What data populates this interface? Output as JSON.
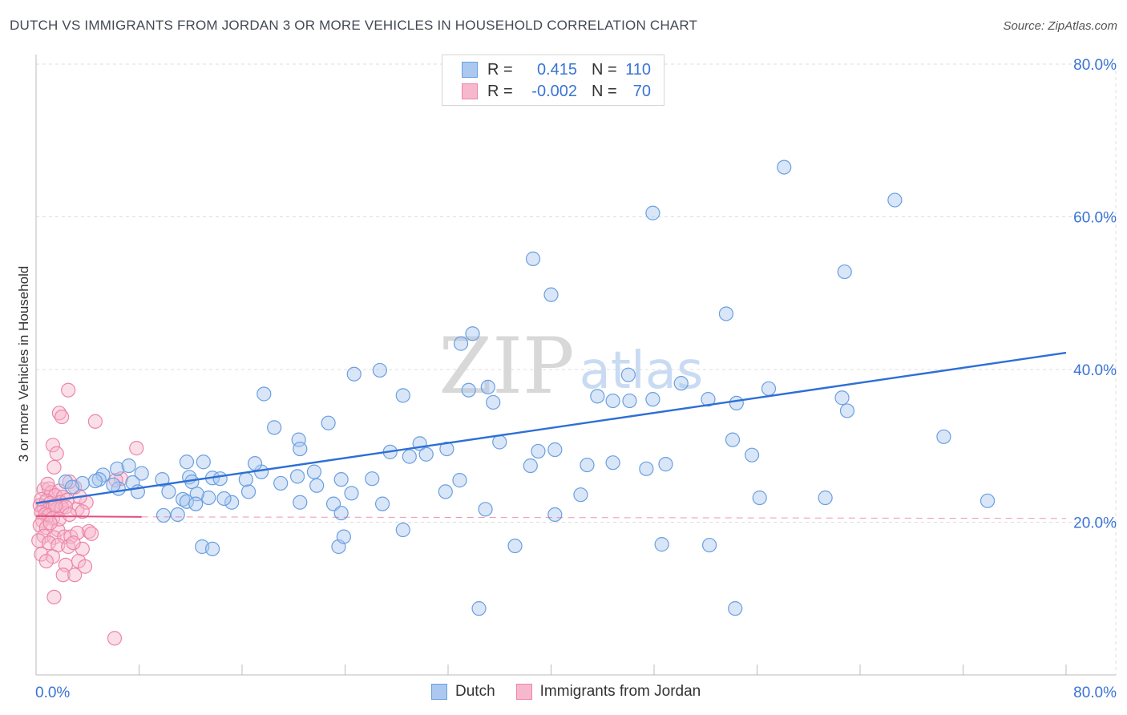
{
  "title": "DUTCH VS IMMIGRANTS FROM JORDAN 3 OR MORE VEHICLES IN HOUSEHOLD CORRELATION CHART",
  "source": "Source: ZipAtlas.com",
  "watermark": {
    "zip": "ZIP",
    "atlas": "atlas"
  },
  "legend": {
    "dutch": {
      "r_label": "R =",
      "r_value": "0.415",
      "n_label": "N =",
      "n_value": "110"
    },
    "jordan": {
      "r_label": "R =",
      "r_value": "-0.002",
      "n_label": "N =",
      "n_value": "70"
    }
  },
  "bottom_legend": {
    "dutch": "Dutch",
    "jordan": "Immigrants from Jordan"
  },
  "colors": {
    "dutch_fill": "#aac8f0",
    "dutch_stroke": "#6a9fe0",
    "dutch_line": "#2d6fd6",
    "jordan_fill": "#f7b8cd",
    "jordan_stroke": "#ec86a8",
    "jordan_line": "#e0507e",
    "tick_text": "#3a74d4",
    "grid": "#dddddd"
  },
  "chart_data": {
    "type": "scatter",
    "title": "DUTCH VS IMMIGRANTS FROM JORDAN 3 OR MORE VEHICLES IN HOUSEHOLD CORRELATION CHART",
    "xlabel": "",
    "ylabel": "3 or more Vehicles in Household",
    "xlim": [
      0,
      80
    ],
    "ylim": [
      0,
      80
    ],
    "x_tick_labels": [
      "0.0%",
      "80.0%"
    ],
    "y_tick_labels": [
      "20.0%",
      "40.0%",
      "60.0%",
      "80.0%"
    ],
    "y_ticks": [
      20,
      40,
      60,
      80
    ],
    "grid": true,
    "series": [
      {
        "name": "Dutch",
        "trend": {
          "x": [
            0,
            80
          ],
          "y": [
            22.5,
            42.2
          ]
        },
        "points": [
          [
            70.5,
            31.2
          ],
          [
            58.1,
            66.5
          ],
          [
            47.9,
            60.5
          ],
          [
            66.7,
            62.2
          ],
          [
            38.6,
            54.5
          ],
          [
            40.0,
            49.8
          ],
          [
            53.6,
            47.3
          ],
          [
            62.8,
            52.8
          ],
          [
            33.9,
            44.7
          ],
          [
            33.0,
            43.4
          ],
          [
            24.7,
            39.4
          ],
          [
            26.7,
            39.9
          ],
          [
            28.5,
            36.6
          ],
          [
            17.7,
            36.8
          ],
          [
            22.7,
            33.0
          ],
          [
            20.4,
            30.8
          ],
          [
            33.6,
            37.3
          ],
          [
            35.1,
            37.7
          ],
          [
            35.5,
            35.7
          ],
          [
            43.6,
            36.5
          ],
          [
            44.8,
            35.9
          ],
          [
            46.1,
            35.9
          ],
          [
            47.9,
            36.1
          ],
          [
            50.1,
            38.2
          ],
          [
            52.2,
            36.1
          ],
          [
            54.4,
            35.6
          ],
          [
            56.9,
            37.5
          ],
          [
            63.0,
            34.6
          ],
          [
            62.6,
            36.3
          ],
          [
            46.0,
            39.3
          ],
          [
            18.5,
            32.4
          ],
          [
            20.5,
            29.6
          ],
          [
            29.8,
            30.3
          ],
          [
            30.3,
            28.9
          ],
          [
            31.9,
            29.6
          ],
          [
            36.0,
            30.5
          ],
          [
            38.4,
            27.4
          ],
          [
            27.5,
            29.2
          ],
          [
            29.0,
            28.6
          ],
          [
            39.0,
            29.3
          ],
          [
            40.3,
            29.5
          ],
          [
            42.8,
            27.5
          ],
          [
            44.8,
            27.8
          ],
          [
            47.4,
            27.0
          ],
          [
            48.9,
            27.6
          ],
          [
            54.1,
            30.8
          ],
          [
            55.6,
            28.8
          ],
          [
            20.5,
            22.6
          ],
          [
            23.7,
            25.6
          ],
          [
            20.3,
            26.0
          ],
          [
            21.6,
            26.6
          ],
          [
            21.8,
            24.8
          ],
          [
            23.1,
            22.4
          ],
          [
            23.7,
            21.2
          ],
          [
            24.5,
            23.8
          ],
          [
            17.5,
            26.6
          ],
          [
            17.0,
            27.7
          ],
          [
            19.0,
            25.1
          ],
          [
            15.2,
            22.6
          ],
          [
            13.4,
            23.2
          ],
          [
            14.6,
            23.1
          ],
          [
            11.7,
            27.9
          ],
          [
            16.5,
            24.0
          ],
          [
            8.2,
            26.4
          ],
          [
            9.8,
            25.6
          ],
          [
            10.3,
            24.0
          ],
          [
            11.4,
            23.0
          ],
          [
            11.9,
            25.9
          ],
          [
            12.1,
            25.3
          ],
          [
            13.7,
            25.8
          ],
          [
            12.5,
            23.7
          ],
          [
            14.3,
            25.7
          ],
          [
            13.0,
            27.9
          ],
          [
            26.1,
            25.7
          ],
          [
            16.3,
            25.6
          ],
          [
            7.5,
            25.2
          ],
          [
            7.9,
            24.0
          ],
          [
            6.4,
            24.4
          ],
          [
            6.0,
            24.9
          ],
          [
            5.2,
            26.2
          ],
          [
            4.9,
            25.6
          ],
          [
            4.6,
            25.4
          ],
          [
            3.6,
            25.1
          ],
          [
            2.3,
            25.3
          ],
          [
            2.8,
            24.6
          ],
          [
            6.3,
            27.0
          ],
          [
            7.2,
            27.4
          ],
          [
            11.7,
            22.7
          ],
          [
            12.9,
            16.8
          ],
          [
            23.5,
            16.8
          ],
          [
            37.2,
            16.9
          ],
          [
            26.9,
            22.4
          ],
          [
            31.8,
            24.0
          ],
          [
            11.0,
            21.0
          ],
          [
            12.4,
            22.4
          ],
          [
            9.9,
            20.9
          ],
          [
            23.9,
            18.1
          ],
          [
            48.6,
            17.1
          ],
          [
            52.3,
            17.0
          ],
          [
            42.3,
            23.6
          ],
          [
            56.2,
            23.2
          ],
          [
            61.3,
            23.2
          ],
          [
            73.9,
            22.8
          ],
          [
            28.5,
            19.0
          ],
          [
            34.9,
            21.7
          ],
          [
            40.3,
            21.0
          ],
          [
            32.9,
            25.5
          ],
          [
            34.4,
            8.7
          ],
          [
            13.7,
            16.5
          ],
          [
            54.3,
            8.7
          ]
        ]
      },
      {
        "name": "Immigrants from Jordan",
        "trend": {
          "x": [
            0,
            8.2
          ],
          "y": [
            20.8,
            20.7
          ]
        },
        "points": [
          [
            2.5,
            37.3
          ],
          [
            1.8,
            34.3
          ],
          [
            2.0,
            33.8
          ],
          [
            4.6,
            33.2
          ],
          [
            1.3,
            30.1
          ],
          [
            1.6,
            29.0
          ],
          [
            1.4,
            27.2
          ],
          [
            0.6,
            24.3
          ],
          [
            1.0,
            24.4
          ],
          [
            1.2,
            23.9
          ],
          [
            1.8,
            24.1
          ],
          [
            1.5,
            23.5
          ],
          [
            2.1,
            23.3
          ],
          [
            0.4,
            23.0
          ],
          [
            0.8,
            22.8
          ],
          [
            1.1,
            22.5
          ],
          [
            1.9,
            22.6
          ],
          [
            2.4,
            22.9
          ],
          [
            0.3,
            22.2
          ],
          [
            0.6,
            21.9
          ],
          [
            0.9,
            21.6
          ],
          [
            1.3,
            21.9
          ],
          [
            1.6,
            21.7
          ],
          [
            2.0,
            21.9
          ],
          [
            0.4,
            21.3
          ],
          [
            0.7,
            21.0
          ],
          [
            1.0,
            20.9
          ],
          [
            0.5,
            20.2
          ],
          [
            1.3,
            20.5
          ],
          [
            0.3,
            19.6
          ],
          [
            0.8,
            19.3
          ],
          [
            1.7,
            19.0
          ],
          [
            0.6,
            18.2
          ],
          [
            1.4,
            18.0
          ],
          [
            2.2,
            18.1
          ],
          [
            2.7,
            18.1
          ],
          [
            0.2,
            17.6
          ],
          [
            1.0,
            17.3
          ],
          [
            1.7,
            17.0
          ],
          [
            2.5,
            16.8
          ],
          [
            0.4,
            15.8
          ],
          [
            1.3,
            15.5
          ],
          [
            3.6,
            16.5
          ],
          [
            0.8,
            14.9
          ],
          [
            2.3,
            14.4
          ],
          [
            3.3,
            14.9
          ],
          [
            3.8,
            14.2
          ],
          [
            2.1,
            13.1
          ],
          [
            3.0,
            13.1
          ],
          [
            1.4,
            10.2
          ],
          [
            3.2,
            21.7
          ],
          [
            3.9,
            22.6
          ],
          [
            3.4,
            23.3
          ],
          [
            3.0,
            24.6
          ],
          [
            2.6,
            25.3
          ],
          [
            3.6,
            21.4
          ],
          [
            4.1,
            18.8
          ],
          [
            4.3,
            18.5
          ],
          [
            3.2,
            18.6
          ],
          [
            2.9,
            17.3
          ],
          [
            2.3,
            22.0
          ],
          [
            1.5,
            22.2
          ],
          [
            6.6,
            25.7
          ],
          [
            6.2,
            25.5
          ],
          [
            7.8,
            29.7
          ],
          [
            6.1,
            4.8
          ],
          [
            0.9,
            25.0
          ],
          [
            1.8,
            20.4
          ],
          [
            2.6,
            21.0
          ],
          [
            1.1,
            19.9
          ]
        ]
      }
    ]
  }
}
